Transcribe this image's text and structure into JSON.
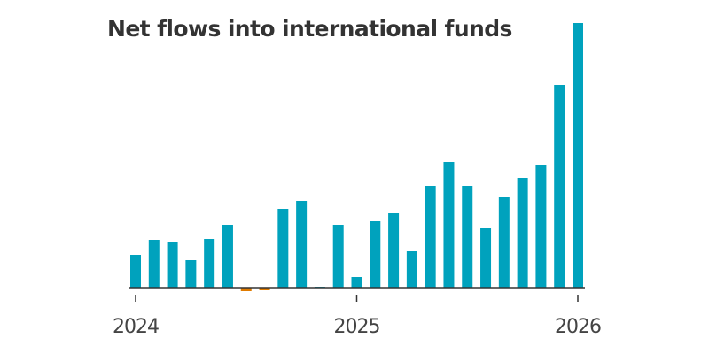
{
  "chart_data": {
    "type": "bar",
    "title": "Net flows into international funds",
    "xlabel": "",
    "ylabel": "",
    "categories": [
      "2024-01",
      "2024-02",
      "2024-03",
      "2024-04",
      "2024-05",
      "2024-06",
      "2024-07",
      "2024-08",
      "2024-09",
      "2024-10",
      "2024-11",
      "2024-12",
      "2025-01",
      "2025-02",
      "2025-03",
      "2025-04",
      "2025-05",
      "2025-06",
      "2025-07",
      "2025-08",
      "2025-09",
      "2025-10",
      "2025-11",
      "2025-12",
      "2026-01"
    ],
    "values": [
      37,
      54,
      52,
      31,
      55,
      71,
      -4,
      -3,
      89,
      98,
      1,
      71,
      12,
      75,
      84,
      41,
      115,
      142,
      115,
      67,
      102,
      124,
      138,
      229,
      299
    ],
    "ylim": [
      -5,
      300
    ],
    "grid": false,
    "x_ticks": [
      {
        "label": "2024",
        "index": 0
      },
      {
        "label": "2025",
        "index": 12
      },
      {
        "label": "2026",
        "index": 24
      }
    ],
    "colors": {
      "positive": "#00a2bd",
      "negative": "#e07b00",
      "axis": "#333333",
      "title": "#333333"
    }
  }
}
